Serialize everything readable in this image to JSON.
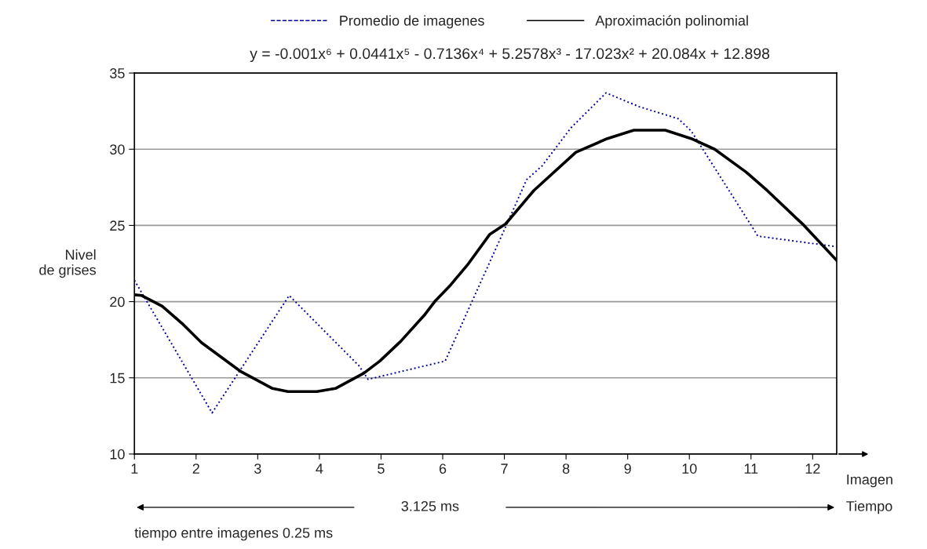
{
  "chart_data": {
    "type": "line",
    "title": null,
    "subtitle": "y = -0.001x⁶ + 0.0441x⁵ - 0.7136x⁴ + 5.2578x³ - 17.023x² + 20.084x + 12.898",
    "ylabel": "Nivel\nde grises",
    "series": [
      {
        "name": "Promedio de imagenes",
        "color": "#000099",
        "line_style": "dotted",
        "x": [
          1,
          2.26,
          3.51,
          4.64,
          4.79,
          6.04,
          7.02,
          7.36,
          7.61,
          8.08,
          8.65,
          9.18,
          9.82,
          10.03,
          11.05,
          11.11,
          12.39
        ],
        "values": [
          21.4,
          12.7,
          20.4,
          15.8,
          14.9,
          16.1,
          24.9,
          28.0,
          28.9,
          31.4,
          33.7,
          32.8,
          32.0,
          31.2,
          24.7,
          24.3,
          23.6
        ]
      },
      {
        "name": "Aproximación polinomial",
        "color": "#000000",
        "line_style": "solid",
        "x": [
          1,
          1.12,
          1.45,
          1.79,
          2.09,
          2.73,
          3.24,
          3.49,
          3.96,
          4.26,
          4.72,
          4.98,
          5.32,
          5.7,
          5.87,
          6.13,
          6.4,
          6.76,
          7.02,
          7.48,
          8.16,
          8.67,
          9.1,
          9.61,
          10.03,
          10.41,
          10.92,
          11.26,
          11.86,
          12.39
        ],
        "values": [
          20.45,
          20.4,
          19.7,
          18.5,
          17.3,
          15.4,
          14.3,
          14.1,
          14.1,
          14.3,
          15.3,
          16.1,
          17.4,
          19.1,
          20.0,
          21.1,
          22.4,
          24.4,
          25.1,
          27.3,
          29.8,
          30.7,
          31.25,
          31.25,
          30.7,
          30.0,
          28.5,
          27.3,
          25.0,
          22.7
        ]
      }
    ],
    "xlim": [
      1,
      12.39
    ],
    "xticks": [
      1,
      2,
      3,
      4,
      5,
      6,
      7,
      8,
      9,
      10,
      11,
      12
    ],
    "ylim": [
      10,
      35
    ],
    "yticks": [
      10,
      15,
      20,
      25,
      30,
      35
    ],
    "grid": "y",
    "legend": "top",
    "marker": "none",
    "annotations": [
      "Imagen",
      "Tiempo",
      "3.125 ms",
      "tiempo entre imagenes 0.25 ms"
    ]
  }
}
